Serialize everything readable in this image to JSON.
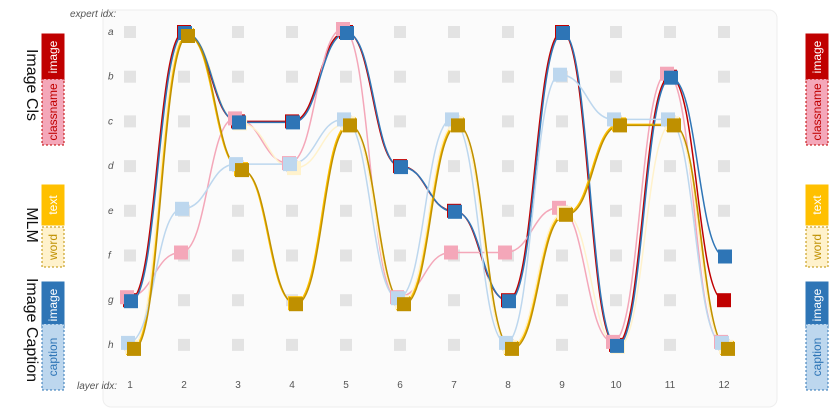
{
  "axis": {
    "expert_label": "expert idx:",
    "layer_label": "layer idx:",
    "expert_rows": [
      "a",
      "b",
      "c",
      "d",
      "e",
      "f",
      "g",
      "h"
    ],
    "layer_cols": [
      "1",
      "2",
      "3",
      "4",
      "5",
      "6",
      "7",
      "8",
      "9",
      "10",
      "11",
      "12"
    ]
  },
  "tasks": [
    {
      "name": "Image Cls",
      "tags": [
        {
          "label": "image",
          "color": "#C00000",
          "text_color": "#ffffff",
          "style": "solid"
        },
        {
          "label": "classname",
          "color": "#F4A7B9",
          "text_color": "#C00000",
          "style": "dashed"
        }
      ]
    },
    {
      "name": "MLM",
      "tags": [
        {
          "label": "text",
          "color": "#FFC000",
          "text_color": "#ffffff",
          "style": "solid"
        },
        {
          "label": "word",
          "color": "#FFF2CC",
          "text_color": "#BF9000",
          "style": "dashed"
        }
      ]
    },
    {
      "name": "Image Caption",
      "tags": [
        {
          "label": "image",
          "color": "#2E75B6",
          "text_color": "#ffffff",
          "style": "solid"
        },
        {
          "label": "caption",
          "color": "#BDD7EE",
          "text_color": "#2E75B6",
          "style": "dashed"
        }
      ]
    }
  ],
  "routes": [
    {
      "name": "image_cls_image",
      "color": "#C00000",
      "path": [
        "g",
        "a",
        "c",
        "c",
        "a",
        "d",
        "e",
        "g",
        "a",
        "h",
        "b",
        "g"
      ]
    },
    {
      "name": "image_cls_classname",
      "color": "#F4A7B9",
      "path": [
        "g",
        "f",
        "c",
        "d",
        "a",
        "g",
        "f",
        "f",
        "e",
        "h",
        "b",
        "h"
      ]
    },
    {
      "name": "mlm_text",
      "color": "#FFC000",
      "path": [
        "h",
        "a",
        "d",
        "g",
        "c",
        "g",
        "c",
        "h",
        "e",
        "c",
        "c",
        "h"
      ]
    },
    {
      "name": "mlm_word",
      "color": "#FFF2CC",
      "path": [
        "h",
        "a",
        "c",
        "d",
        "c",
        "g",
        "c",
        "h",
        "e",
        "h",
        "c",
        "h"
      ]
    },
    {
      "name": "caption_image",
      "color": "#2E75B6",
      "path": [
        "g",
        "a",
        "c",
        "c",
        "a",
        "d",
        "e",
        "g",
        "a",
        "h",
        "b",
        "f"
      ]
    },
    {
      "name": "caption_caption",
      "color": "#BDD7EE",
      "path": [
        "h",
        "e",
        "d",
        "d",
        "c",
        "g",
        "c",
        "h",
        "b",
        "c",
        "c",
        "h"
      ]
    },
    {
      "name": "olive_extra",
      "color": "#BF9000",
      "path": [
        "h",
        "a",
        "d",
        "g",
        "c",
        "g",
        "c",
        "h",
        "e",
        "c",
        "c",
        "h"
      ]
    }
  ]
}
